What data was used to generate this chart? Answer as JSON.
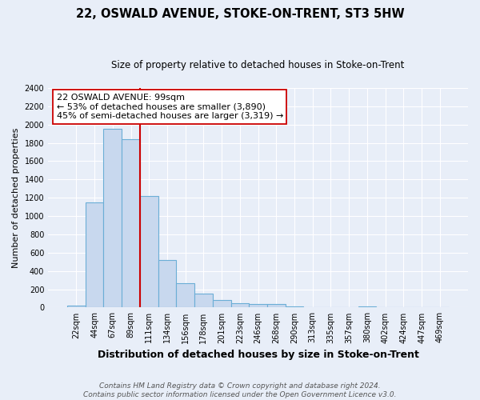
{
  "title": "22, OSWALD AVENUE, STOKE-ON-TRENT, ST3 5HW",
  "subtitle": "Size of property relative to detached houses in Stoke-on-Trent",
  "xlabel": "Distribution of detached houses by size in Stoke-on-Trent",
  "ylabel": "Number of detached properties",
  "footnote1": "Contains HM Land Registry data © Crown copyright and database right 2024.",
  "footnote2": "Contains public sector information licensed under the Open Government Licence v3.0.",
  "categories": [
    "22sqm",
    "44sqm",
    "67sqm",
    "89sqm",
    "111sqm",
    "134sqm",
    "156sqm",
    "178sqm",
    "201sqm",
    "223sqm",
    "246sqm",
    "268sqm",
    "290sqm",
    "313sqm",
    "335sqm",
    "357sqm",
    "380sqm",
    "402sqm",
    "424sqm",
    "447sqm",
    "469sqm"
  ],
  "values": [
    25,
    1150,
    1950,
    1840,
    1220,
    520,
    265,
    150,
    80,
    50,
    40,
    35,
    10,
    5,
    0,
    0,
    15,
    5,
    0,
    0,
    0
  ],
  "bar_color": "#c8d8ee",
  "bar_edge_color": "#6baed6",
  "bar_linewidth": 0.8,
  "vline_x": 3.5,
  "vline_color": "#cc0000",
  "vline_linewidth": 1.5,
  "annotation_title": "22 OSWALD AVENUE: 99sqm",
  "annotation_line1": "← 53% of detached houses are smaller (3,890)",
  "annotation_line2": "45% of semi-detached houses are larger (3,319) →",
  "annotation_box_color": "#ffffff",
  "annotation_box_edge": "#cc0000",
  "ylim": [
    0,
    2400
  ],
  "yticks": [
    0,
    200,
    400,
    600,
    800,
    1000,
    1200,
    1400,
    1600,
    1800,
    2000,
    2200,
    2400
  ],
  "bg_color": "#e8eef8",
  "grid_color": "#ffffff",
  "title_fontsize": 10.5,
  "subtitle_fontsize": 8.5,
  "xlabel_fontsize": 9,
  "ylabel_fontsize": 8,
  "tick_fontsize": 7,
  "annot_fontsize": 8,
  "footnote_fontsize": 6.5
}
